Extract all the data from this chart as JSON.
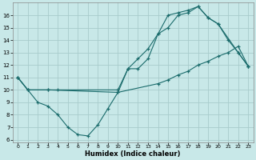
{
  "bg_color": "#c8e8e8",
  "grid_color": "#a8cccc",
  "line_color": "#1a6b6b",
  "xlabel": "Humidex (Indice chaleur)",
  "xlim": [
    -0.5,
    23.5
  ],
  "ylim": [
    5.8,
    17.0
  ],
  "yticks": [
    6,
    7,
    8,
    9,
    10,
    11,
    12,
    13,
    14,
    15,
    16
  ],
  "xticks": [
    0,
    1,
    2,
    3,
    4,
    5,
    6,
    7,
    8,
    9,
    10,
    11,
    12,
    13,
    14,
    15,
    16,
    17,
    18,
    19,
    20,
    21,
    22,
    23
  ],
  "line1_x": [
    0,
    1,
    2,
    3,
    4,
    5,
    6,
    7,
    8,
    9,
    10,
    11,
    12,
    13,
    14,
    15,
    16,
    17,
    18,
    19,
    20,
    21,
    22,
    23
  ],
  "line1_y": [
    11,
    10,
    9,
    8.7,
    8.0,
    7.0,
    6.4,
    6.3,
    7.2,
    8.5,
    9.8,
    11.7,
    11.7,
    12.5,
    14.5,
    15.0,
    16.0,
    16.2,
    16.7,
    15.8,
    15.3,
    14.0,
    13.0,
    11.9
  ],
  "line2_x": [
    0,
    1,
    3,
    4,
    10,
    11,
    12,
    13,
    14,
    15,
    16,
    17,
    18,
    19,
    20,
    22,
    23
  ],
  "line2_y": [
    11,
    10,
    10.0,
    10.0,
    10.0,
    11.7,
    12.5,
    13.3,
    14.5,
    16.0,
    16.2,
    16.4,
    16.7,
    15.8,
    15.3,
    13.0,
    11.9
  ],
  "line3_x": [
    0,
    1,
    3,
    10,
    14,
    15,
    16,
    17,
    18,
    19,
    20,
    21,
    22,
    23
  ],
  "line3_y": [
    11,
    10,
    10.0,
    9.8,
    10.5,
    10.8,
    11.2,
    11.5,
    12.0,
    12.3,
    12.7,
    13.0,
    13.5,
    11.9
  ]
}
